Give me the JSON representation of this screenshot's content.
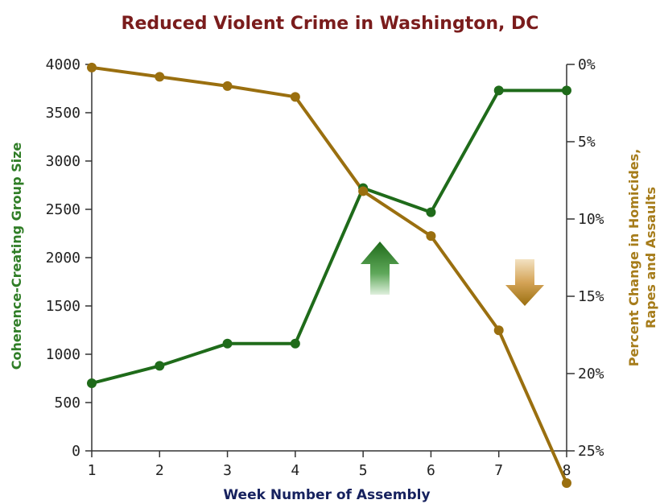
{
  "chart_data": {
    "type": "line",
    "title": "Reduced Violent Crime in Washington, DC",
    "xlabel": "Week Number of Assembly",
    "ylabel_left": "Coherence-Creating Group Size",
    "ylabel_right_line1": "Percent Change in Homicides,",
    "ylabel_right_line2": "Rapes and Assaults",
    "x": [
      1,
      2,
      3,
      4,
      5,
      6,
      7,
      8
    ],
    "x_ticks": [
      "1",
      "2",
      "3",
      "4",
      "5",
      "6",
      "7",
      "8"
    ],
    "ylim_left": [
      0,
      4000
    ],
    "y_ticks_left": [
      "0",
      "500",
      "1000",
      "1500",
      "2000",
      "2500",
      "3000",
      "3500",
      "4000"
    ],
    "ylim_right": [
      0,
      25
    ],
    "y_ticks_right": [
      "0%",
      "5%",
      "10%",
      "15%",
      "20%",
      "25%"
    ],
    "right_axis_inverted": true,
    "grid": false,
    "series": [
      {
        "axis": "left",
        "color": "#1f6b1a",
        "values": [
          700,
          880,
          1110,
          1110,
          2720,
          2470,
          3730,
          3730
        ]
      },
      {
        "axis": "right",
        "color": "#9a6f0f",
        "values": [
          0.2,
          0.8,
          1.4,
          2.1,
          8.2,
          11.1,
          17.2,
          28.6
        ]
      }
    ],
    "annotations": [
      {
        "shape": "arrow-up",
        "color": "#2e8b2e"
      },
      {
        "shape": "arrow-down",
        "color": "#b07a1a"
      }
    ]
  }
}
